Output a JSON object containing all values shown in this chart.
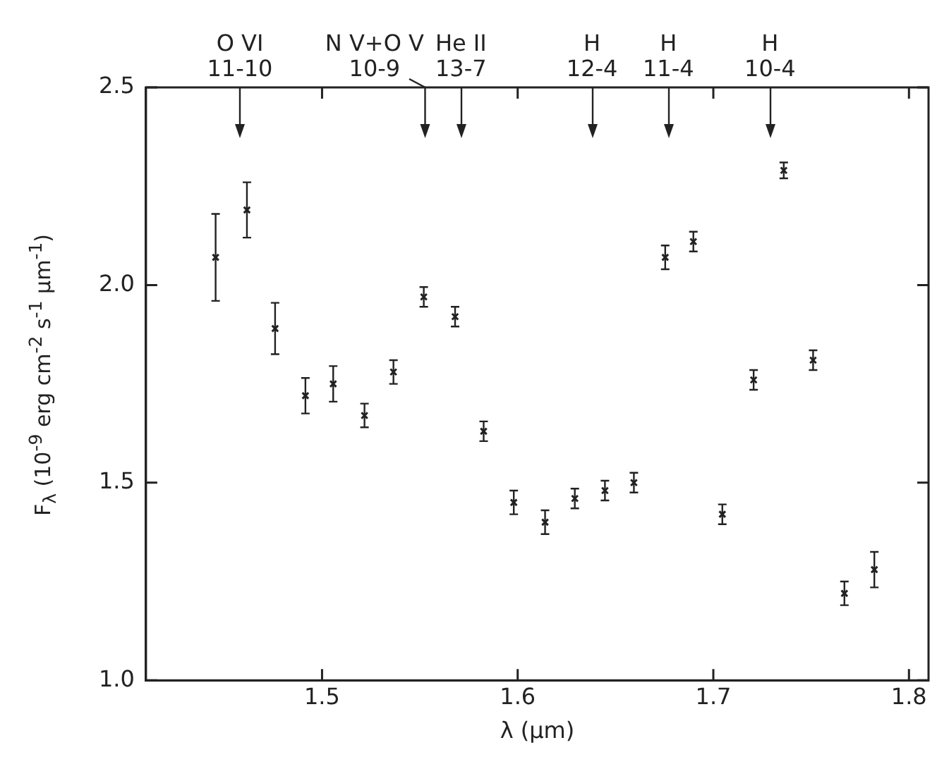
{
  "chart_data": {
    "type": "scatter",
    "xlabel": "λ (μm)",
    "ylabel": "F$_{λ}$ (10$^{-9}$ erg cm$^{-2}$ s$^{-1}$ μm$^{-1}$)",
    "x": [
      1.4456,
      1.4616,
      1.476,
      1.4915,
      1.5057,
      1.5217,
      1.5365,
      1.552,
      1.568,
      1.5826,
      1.598,
      1.614,
      1.6292,
      1.6446,
      1.6594,
      1.6754,
      1.6898,
      1.7046,
      1.7206,
      1.736,
      1.751,
      1.767,
      1.7823
    ],
    "values": [
      2.07,
      2.19,
      1.89,
      1.72,
      1.75,
      1.67,
      1.78,
      1.97,
      1.92,
      1.63,
      1.45,
      1.4,
      1.46,
      1.48,
      1.5,
      2.07,
      2.11,
      1.42,
      1.76,
      2.29,
      1.81,
      1.22,
      1.28
    ],
    "errors": [
      0.11,
      0.07,
      0.065,
      0.045,
      0.045,
      0.03,
      0.03,
      0.025,
      0.025,
      0.025,
      0.03,
      0.03,
      0.025,
      0.025,
      0.025,
      0.03,
      0.025,
      0.025,
      0.025,
      0.02,
      0.025,
      0.03,
      0.045
    ],
    "color": "#222222",
    "marker": "cross",
    "xlim": [
      1.41,
      1.81
    ],
    "xticks": [
      1.5,
      1.6,
      1.7,
      1.8
    ],
    "ylim": [
      1.0,
      2.5
    ],
    "yticks": [
      {
        "value": 1.0,
        "label": "1.0"
      },
      {
        "value": 1.5,
        "label": "1.5"
      },
      {
        "value": 2.0,
        "label": "2.0"
      },
      {
        "value": 2.5,
        "label": "2.5"
      }
    ],
    "grid": false,
    "ref_lines": [
      {
        "axis": "x",
        "value": 1.458,
        "label": "O VI\n11-10"
      },
      {
        "axis": "x",
        "value": 1.553,
        "label": "N V+O V\n10-9"
      },
      {
        "axis": "x",
        "value": 1.571,
        "label": "He II\n13-7"
      },
      {
        "axis": "x",
        "value": 1.638,
        "label": "H\n12-4"
      },
      {
        "axis": "x",
        "value": 1.677,
        "label": "H\n11-4"
      },
      {
        "axis": "x",
        "value": 1.729,
        "label": "H\n10-4"
      }
    ]
  }
}
